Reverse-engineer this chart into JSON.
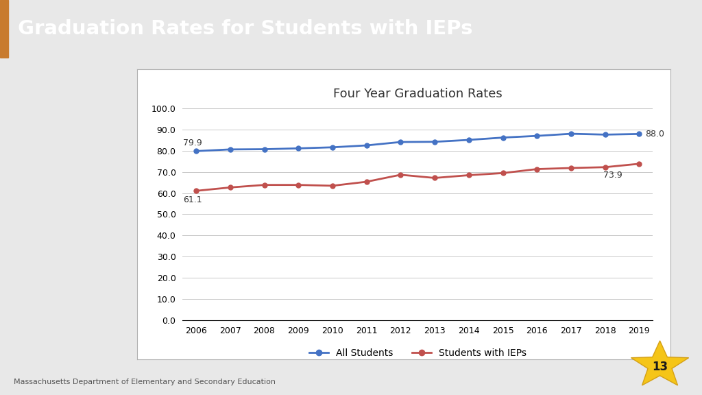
{
  "title": "Four Year Graduation Rates",
  "header_title": "Graduation Rates for Students with IEPs",
  "header_bg": "#0d1f3c",
  "header_accent": "#c87b2e",
  "years": [
    2006,
    2007,
    2008,
    2009,
    2010,
    2011,
    2012,
    2013,
    2014,
    2015,
    2016,
    2017,
    2018,
    2019
  ],
  "all_students": [
    79.9,
    80.7,
    80.8,
    81.2,
    81.7,
    82.6,
    84.2,
    84.3,
    85.2,
    86.3,
    87.1,
    88.1,
    87.7,
    88.0
  ],
  "iep_students": [
    61.1,
    62.7,
    63.9,
    63.9,
    63.5,
    65.4,
    68.7,
    67.2,
    68.5,
    69.5,
    71.4,
    71.9,
    72.3,
    73.9
  ],
  "all_color": "#4472c4",
  "iep_color": "#c0504d",
  "ylim": [
    0.0,
    100.0
  ],
  "yticks": [
    0.0,
    10.0,
    20.0,
    30.0,
    40.0,
    50.0,
    60.0,
    70.0,
    80.0,
    90.0,
    100.0
  ],
  "legend_all": "All Students",
  "legend_iep": "Students with IEPs",
  "footer_text": "Massachusetts Department of Elementary and Secondary Education",
  "slide_num": "13",
  "bg_color": "#f0f0f0",
  "chart_box_bg": "#ffffff",
  "grid_color": "#c8c8c8"
}
